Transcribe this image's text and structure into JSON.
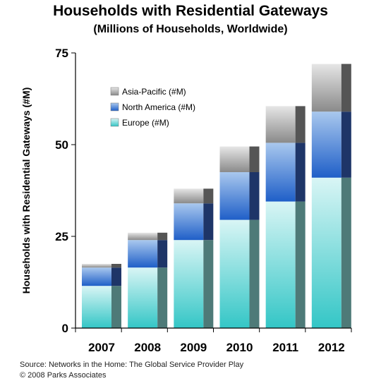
{
  "chart_data": {
    "type": "bar",
    "stacked": true,
    "title": "Households with Residential Gateways",
    "subtitle": "(Millions of Households, Worldwide)",
    "ylabel": "Households with Residential Gateways (#M)",
    "xlabel": "",
    "categories": [
      "2007",
      "2008",
      "2009",
      "2010",
      "2011",
      "2012"
    ],
    "ylim": [
      0,
      75
    ],
    "yticks": [
      0,
      25,
      50,
      75
    ],
    "series": [
      {
        "name": "Europe (#M)",
        "values": [
          11.5,
          16.5,
          24,
          29.5,
          34.5,
          41
        ],
        "color": "#3cc8c8"
      },
      {
        "name": "North America (#M)",
        "values": [
          5,
          7.5,
          10,
          13,
          16,
          18
        ],
        "color": "#2a6ad0"
      },
      {
        "name": "Asia-Pacific (#M)",
        "values": [
          1,
          2,
          4,
          7,
          10,
          13
        ],
        "color": "#8c8c8c"
      }
    ],
    "legend_position": "upper-left",
    "grid": false
  },
  "footer": {
    "source": "Source:  Networks in the Home: The Global Service Provider Play",
    "copyright": "© 2008 Parks Associates"
  }
}
